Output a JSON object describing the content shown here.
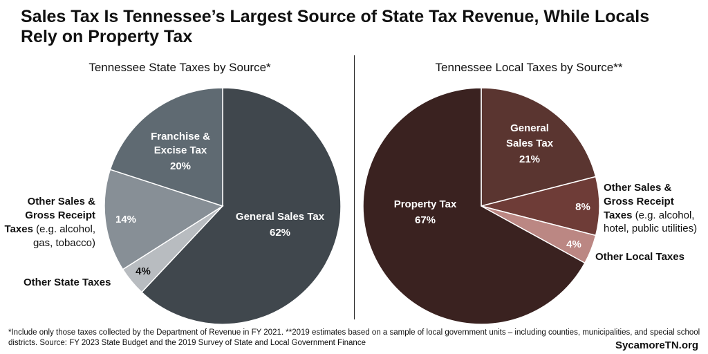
{
  "title": "Sales Tax Is Tennessee’s Largest Source of State Tax Revenue, While Locals Rely on Property Tax",
  "footnote": "*Include only those taxes collected by the Department of Revenue in FY 2021. **2019 estimates based on a sample of local government units – including counties, municipalities, and special school districts. Source: FY 2023 State Budget and the 2019 Survey of State and Local Government Finance",
  "brand": "SycamoreTN.org",
  "chart_data": [
    {
      "type": "pie",
      "title": "Tennessee State Taxes by Source*",
      "slices": [
        {
          "label": "General Sales Tax",
          "value": 62,
          "value_label": "62%",
          "color": "#40474d"
        },
        {
          "label": "Other State Taxes",
          "value": 4,
          "value_label": "4%",
          "color": "#b8bcc0"
        },
        {
          "label": "Other Sales & Gross Receipt Taxes (e.g. alcohol, gas, tobacco)",
          "value": 14,
          "value_label": "14%",
          "color": "#878f96"
        },
        {
          "label": "Franchise & Excise Tax",
          "value": 20,
          "value_label": "20%",
          "color": "#5f6a72"
        }
      ],
      "text": {
        "general_sales": "General Sales Tax",
        "general_sales_pct": "62%",
        "other_state": "Other State Taxes",
        "other_state_pct": "4%",
        "other_sales_l1": "Other Sales &",
        "other_sales_l2": "Gross Receipt",
        "other_sales_l3": "Taxes",
        "other_sales_l3b": " (e.g. alcohol,",
        "other_sales_l4": "gas, tobacco)",
        "other_sales_pct": "14%",
        "franchise_l1": "Franchise &",
        "franchise_l2": "Excise Tax",
        "franchise_pct": "20%"
      }
    },
    {
      "type": "pie",
      "title": "Tennessee Local Taxes by Source**",
      "slices": [
        {
          "label": "General Sales Tax",
          "value": 21,
          "value_label": "21%",
          "color": "#5a3530"
        },
        {
          "label": "Other Sales & Gross Receipt Taxes (e.g. alcohol, hotel, public utilities)",
          "value": 8,
          "value_label": "8%",
          "color": "#6e3c37"
        },
        {
          "label": "Other Local Taxes",
          "value": 4,
          "value_label": "4%",
          "color": "#bb8783"
        },
        {
          "label": "Property Tax",
          "value": 67,
          "value_label": "67%",
          "color": "#3a2220"
        }
      ],
      "text": {
        "general_sales_l1": "General",
        "general_sales_l2": "Sales Tax",
        "general_sales_pct": "21%",
        "other_sales_l1": "Other Sales &",
        "other_sales_l2": "Gross Receipt",
        "other_sales_l3": "Taxes",
        "other_sales_l3b": " (e.g. alcohol,",
        "other_sales_l4": "hotel, public utilities)",
        "other_sales_pct": "8%",
        "other_local": "Other Local Taxes",
        "other_local_pct": "4%",
        "property": "Property Tax",
        "property_pct": "67%"
      }
    }
  ]
}
